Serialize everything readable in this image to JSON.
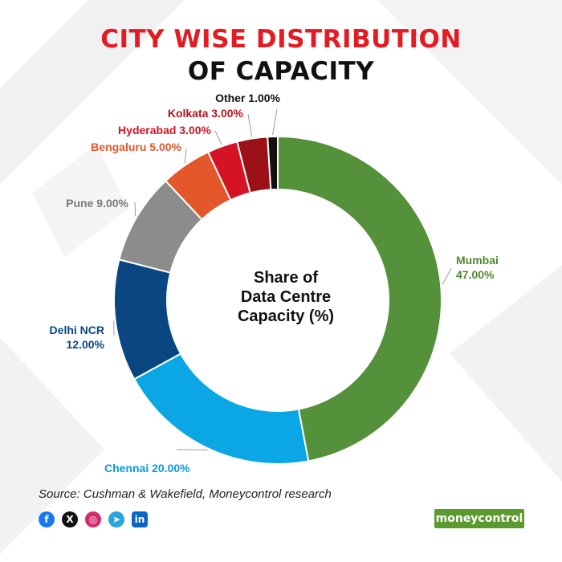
{
  "title_line1": "CITY WISE DISTRIBUTION",
  "title_line2": "OF CAPACITY",
  "chart_data": {
    "type": "pie",
    "variant": "donut",
    "title": "CITY WISE DISTRIBUTION OF CAPACITY",
    "center_label": [
      "Share of",
      "Data Centre",
      "Capacity (%)"
    ],
    "slices": [
      {
        "name": "Mumbai",
        "value": 47.0,
        "label": "47.00%",
        "color": "#54913a"
      },
      {
        "name": "Chennai",
        "value": 20.0,
        "label": "20.00%",
        "color": "#0ba6e4"
      },
      {
        "name": "Delhi NCR",
        "value": 12.0,
        "label": "12.00%",
        "color": "#0a4782"
      },
      {
        "name": "Pune",
        "value": 9.0,
        "label": "9.00%",
        "color": "#8c8c8c"
      },
      {
        "name": "Bengaluru",
        "value": 5.0,
        "label": "5.00%",
        "color": "#e4572a"
      },
      {
        "name": "Hyderabad",
        "value": 3.0,
        "label": "3.00%",
        "color": "#d41424"
      },
      {
        "name": "Kolkata",
        "value": 3.0,
        "label": "3.00%",
        "color": "#9c1118"
      },
      {
        "name": "Other",
        "value": 1.0,
        "label": "1.00%",
        "color": "#111111"
      }
    ],
    "label_colors": {
      "Mumbai": "#4e8a2f",
      "Chennai": "#0a9bd8",
      "Delhi NCR": "#0a4782",
      "Pune": "#7a7a7a",
      "Bengaluru": "#e4572a",
      "Hyderabad": "#d41424",
      "Kolkata": "#b1121b",
      "Other": "#111111"
    }
  },
  "source": "Source: Cushman & Wakefield, Moneycontrol research",
  "social": [
    {
      "icon": "facebook-icon",
      "glyph": "f",
      "color": "#1877f2"
    },
    {
      "icon": "x-icon",
      "glyph": "X",
      "color": "#111111"
    },
    {
      "icon": "instagram-icon",
      "glyph": "◎",
      "color": "#d6296b"
    },
    {
      "icon": "telegram-icon",
      "glyph": "➤",
      "color": "#2aa3de"
    },
    {
      "icon": "linkedin-icon",
      "glyph": "in",
      "color": "#0a66c2"
    }
  ],
  "brand": "moneycontrol"
}
